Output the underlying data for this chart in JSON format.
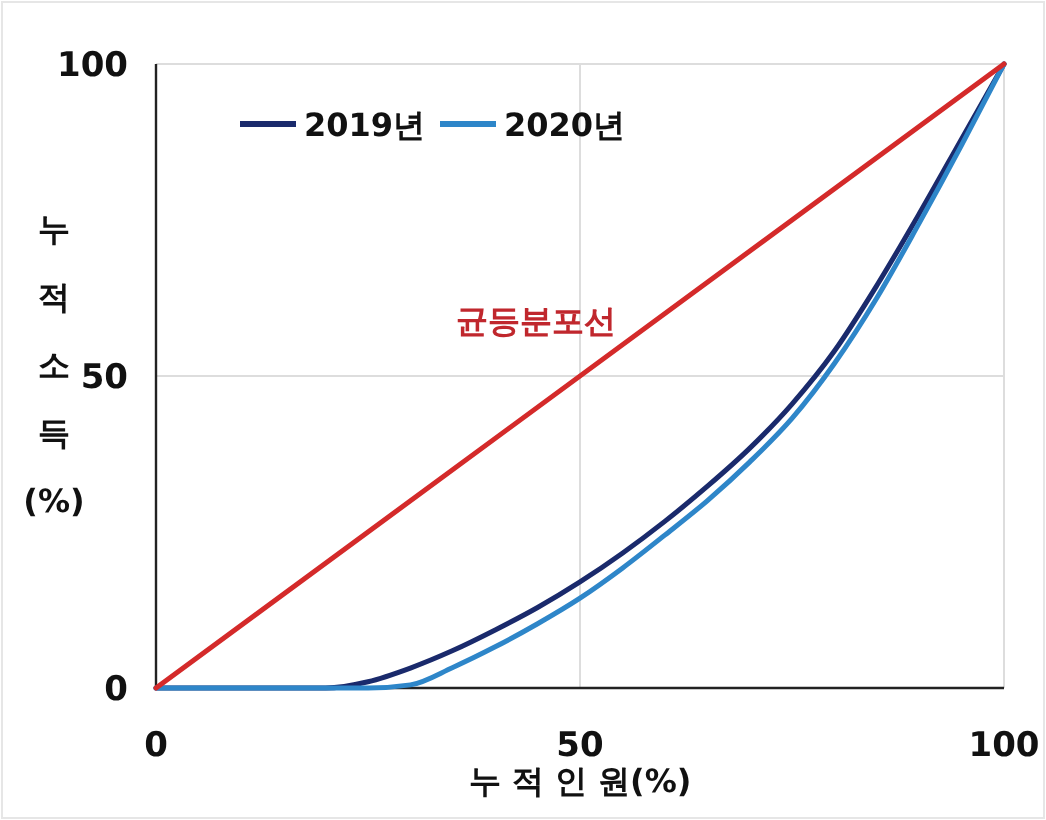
{
  "chart_data": {
    "type": "line",
    "xlabel": "누 적 인 원(%)",
    "ylabel": "누적소득(%)",
    "xlim": [
      0,
      100
    ],
    "ylim": [
      0,
      100
    ],
    "xticks": [
      0,
      50,
      100
    ],
    "yticks": [
      0,
      50,
      100
    ],
    "grid": true,
    "legend": "top left",
    "line_style": "solid",
    "marker": "none",
    "series": [
      {
        "name": "2019년",
        "color": "#1a2a6c",
        "x": [
          0,
          10,
          20,
          25,
          30,
          35,
          40,
          45,
          50,
          55,
          60,
          65,
          70,
          75,
          80,
          85,
          90,
          95,
          100
        ],
        "values": [
          0,
          0,
          0,
          1,
          3.2,
          6,
          9.3,
          12.9,
          17,
          21.6,
          26.7,
          32.3,
          38.4,
          45.5,
          54,
          64.5,
          76,
          88,
          100
        ]
      },
      {
        "name": "2020년",
        "color": "#2e86c9",
        "x": [
          0,
          10,
          20,
          25,
          30,
          35,
          40,
          45,
          50,
          55,
          60,
          65,
          70,
          75,
          80,
          85,
          90,
          95,
          100
        ],
        "values": [
          0,
          0,
          0,
          0,
          0.5,
          3.3,
          6.6,
          10.3,
          14.4,
          19.2,
          24.5,
          30,
          36.2,
          43.2,
          52,
          62.5,
          74.5,
          87,
          100
        ]
      },
      {
        "color": "#d42a2a",
        "x": [
          0,
          100
        ],
        "values": [
          0,
          100
        ]
      }
    ],
    "annotations": [
      "균등분포선"
    ]
  }
}
